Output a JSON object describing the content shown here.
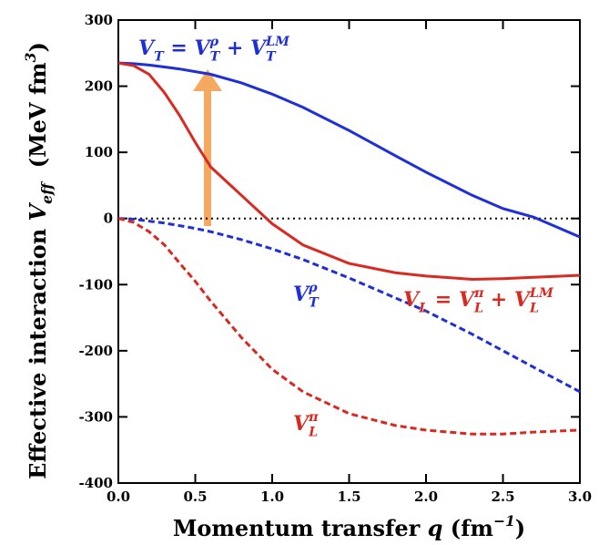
{
  "chart_data": {
    "type": "line",
    "x": [
      0,
      0.1,
      0.2,
      0.3,
      0.4,
      0.5,
      0.6,
      0.8,
      1.0,
      1.2,
      1.5,
      1.8,
      2.0,
      2.3,
      2.5,
      2.7,
      3.0
    ],
    "series": [
      {
        "color": "#1f2fd8",
        "dashed": false,
        "values": [
          235,
          234,
          232,
          229,
          226,
          222,
          218,
          205,
          188,
          168,
          133,
          95,
          70,
          35,
          15,
          2,
          -28
        ]
      },
      {
        "color": "#d82a20",
        "dashed": false,
        "values": [
          235,
          231,
          218,
          190,
          155,
          115,
          78,
          35,
          -8,
          -40,
          -68,
          -82,
          -87,
          -92,
          -91,
          -89,
          -86
        ]
      },
      {
        "color": "#1f2fd8",
        "dashed": true,
        "values": [
          0,
          -1,
          -4,
          -7,
          -11,
          -15,
          -20,
          -32,
          -46,
          -62,
          -90,
          -120,
          -140,
          -175,
          -200,
          -225,
          -262
        ]
      },
      {
        "color": "#d82a20",
        "dashed": true,
        "values": [
          0,
          -6,
          -20,
          -40,
          -68,
          -95,
          -125,
          -180,
          -228,
          -262,
          -295,
          -313,
          -320,
          -326,
          -326,
          -323,
          -320
        ]
      }
    ],
    "xlim": [
      0,
      3
    ],
    "ylim": [
      -400,
      300
    ],
    "xticks": [
      {
        "value": 0,
        "label": "0.0"
      },
      {
        "value": 0.5,
        "label": "0.5"
      },
      {
        "value": 1,
        "label": "1.0"
      },
      {
        "value": 1.5,
        "label": "1.5"
      },
      {
        "value": 2,
        "label": "2.0"
      },
      {
        "value": 2.5,
        "label": "2.5"
      },
      {
        "value": 3,
        "label": "3.0"
      }
    ],
    "yticks": [
      -400,
      -300,
      -200,
      -100,
      0,
      100,
      200,
      300
    ],
    "hline": 0,
    "xlabel": [
      {
        "text": "Momentum transfer "
      },
      {
        "var": "q"
      },
      {
        "text": " (fm",
        "sup": "−1"
      },
      {
        "text": ")"
      }
    ],
    "ylabel": [
      {
        "text": "Effective interaction "
      },
      {
        "var": "V",
        "sub": "eff"
      },
      {
        "text": "  (MeV fm",
        "sup": "3"
      },
      {
        "text": ")"
      }
    ],
    "annotations": [
      {
        "color": "#1f2fd8",
        "parts": [
          {
            "var": "V",
            "sub": "T"
          },
          {
            "text": " = "
          },
          {
            "var": "V",
            "sub": "T",
            "sup": "ρ"
          },
          {
            "text": " + "
          },
          {
            "var": "V",
            "sub": "T",
            "sup": "LM"
          }
        ]
      },
      {
        "color": "#1f2fd8",
        "parts": [
          {
            "var": "V",
            "sub": "T",
            "sup": "ρ"
          }
        ]
      },
      {
        "color": "#d82a20",
        "parts": [
          {
            "var": "V",
            "sub": "L"
          },
          {
            "text": " = "
          },
          {
            "var": "V",
            "sub": "L",
            "sup": "π"
          },
          {
            "text": " + "
          },
          {
            "var": "V",
            "sub": "L",
            "sup": "LM"
          }
        ]
      },
      {
        "color": "#d82a20",
        "parts": [
          {
            "var": "V",
            "sub": "L",
            "sup": "π"
          }
        ]
      }
    ]
  }
}
